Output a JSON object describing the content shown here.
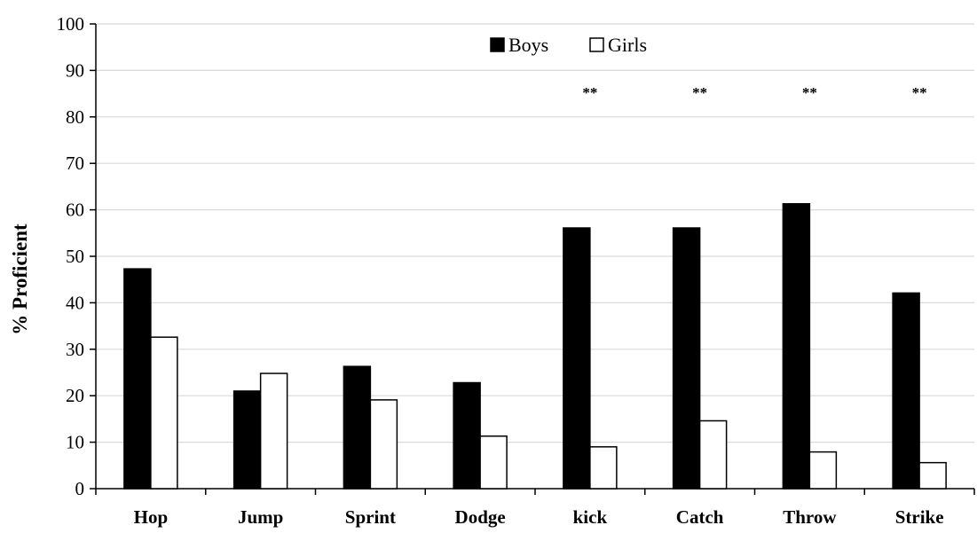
{
  "chart_data": {
    "type": "bar",
    "title": "",
    "xlabel": "",
    "ylabel": "% Proficient",
    "ylim": [
      0,
      100
    ],
    "yticks": [
      0,
      10,
      20,
      30,
      40,
      50,
      60,
      70,
      80,
      90,
      100
    ],
    "grid": true,
    "legend_position": "top-center",
    "categories": [
      "Hop",
      "Jump",
      "Sprint",
      "Dodge",
      "kick",
      "Catch",
      "Throw",
      "Strike"
    ],
    "series": [
      {
        "name": "Boys",
        "color": "#000000",
        "values": [
          47.3,
          21,
          26.3,
          22.8,
          56.1,
          56.1,
          61.3,
          42.1
        ]
      },
      {
        "name": "Girls",
        "color": "#ffffff",
        "values": [
          32.6,
          24.8,
          19.1,
          11.3,
          9,
          14.6,
          7.9,
          5.6
        ]
      }
    ],
    "annotations": [
      "",
      "",
      "",
      "",
      "**",
      "**",
      "**",
      "**"
    ]
  }
}
